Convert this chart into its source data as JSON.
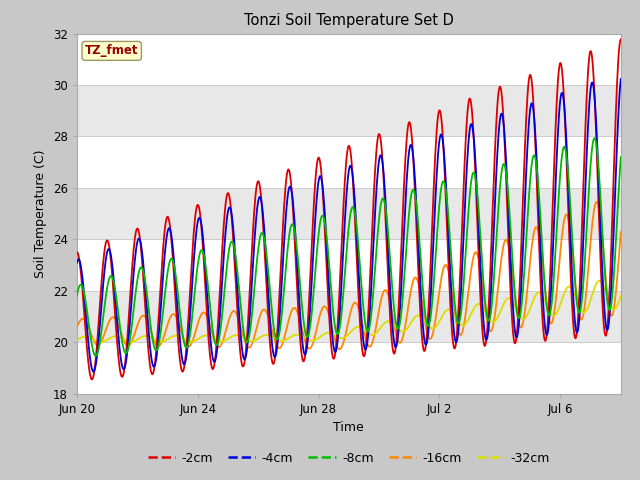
{
  "title": "Tonzi Soil Temperature Set D",
  "xlabel": "Time",
  "ylabel": "Soil Temperature (C)",
  "ylim": [
    18,
    32
  ],
  "tick_dates": [
    "Jun 20",
    "Jun 24",
    "Jun 28",
    "Jul 2",
    "Jul 6"
  ],
  "tick_positions": [
    0,
    4,
    8,
    12,
    16
  ],
  "yticks": [
    18,
    20,
    22,
    24,
    26,
    28,
    30,
    32
  ],
  "legend_labels": [
    "-2cm",
    "-4cm",
    "-8cm",
    "-16cm",
    "-32cm"
  ],
  "legend_colors": [
    "#dd0000",
    "#0000dd",
    "#00bb00",
    "#ff8800",
    "#dddd00"
  ],
  "annotation_text": "TZ_fmet",
  "annotation_color": "#990000",
  "annotation_bg": "#ffffcc",
  "band_colors": [
    "#ffffff",
    "#e8e8e8"
  ],
  "line_width": 1.3
}
